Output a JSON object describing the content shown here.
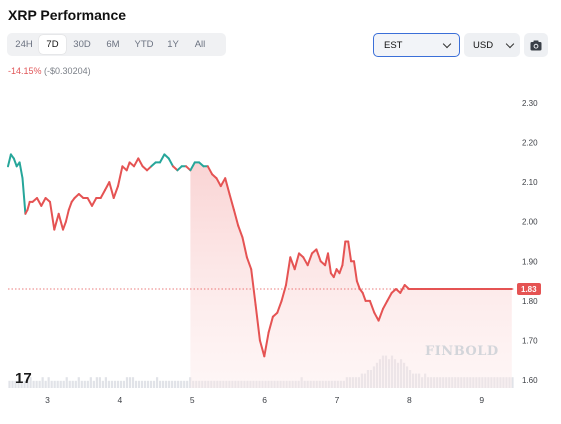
{
  "header": {
    "title": "XRP Performance"
  },
  "range_tabs": [
    "24H",
    "7D",
    "30D",
    "6M",
    "YTD",
    "1Y",
    "All"
  ],
  "active_range": "7D",
  "timezone": {
    "selected": "EST"
  },
  "currency": {
    "selected": "USD"
  },
  "icons": {
    "camera": "camera-icon",
    "chevron": "chevron-down-icon"
  },
  "performance": {
    "percent": "-14.15%",
    "absolute": "(-$0.30204)"
  },
  "current_price_label": "1.83",
  "watermark": "FINBOLD",
  "provider_logo": "17",
  "colors": {
    "up": "#26a69a",
    "down": "#e55353",
    "area_top": "#f9d5d5",
    "volume": "#e1e3e8",
    "accent": "#3b6fd8"
  },
  "chart_data": {
    "type": "line",
    "x_tick_labels": [
      "3",
      "4",
      "5",
      "6",
      "7",
      "8",
      "9"
    ],
    "x_ticks_day": [
      3,
      4,
      5,
      6,
      7,
      8,
      9
    ],
    "y_tick_labels": [
      "2.30",
      "2.20",
      "2.10",
      "2.00",
      "1.90",
      "1.80",
      "1.70",
      "1.60"
    ],
    "ylim": [
      1.6,
      2.3
    ],
    "xlim": [
      2.46,
      9.45
    ],
    "reference_price": 1.83,
    "grid": false,
    "series": [
      {
        "x": [
          2.46,
          2.5,
          2.54,
          2.58,
          2.62,
          2.66,
          2.7,
          2.73,
          2.76,
          2.8,
          2.86,
          2.92,
          2.98,
          3.04,
          3.1,
          3.16,
          3.22,
          3.26,
          3.3,
          3.34,
          3.38,
          3.44,
          3.5,
          3.56,
          3.62,
          3.68,
          3.74,
          3.8,
          3.86,
          3.92,
          3.98,
          4.04,
          4.1,
          4.14,
          4.2,
          4.26,
          4.32,
          4.38,
          4.44,
          4.5,
          4.56,
          4.62,
          4.68,
          4.74,
          4.8,
          4.86,
          4.92,
          4.98,
          5.04,
          5.1,
          5.16,
          5.22,
          5.28,
          5.34,
          5.4,
          5.46,
          5.52,
          5.58,
          5.64,
          5.7,
          5.76,
          5.82,
          5.88,
          5.94,
          6.0,
          6.06,
          6.12,
          6.18,
          6.24,
          6.3,
          6.36,
          6.42,
          6.48,
          6.54,
          6.6,
          6.66,
          6.72,
          6.78,
          6.84,
          6.88,
          6.92,
          6.96,
          7.0,
          7.04,
          7.08,
          7.12,
          7.16,
          7.2,
          7.24,
          7.28,
          7.32,
          7.36,
          7.4,
          7.46,
          7.52,
          7.58,
          7.64,
          7.7,
          7.76,
          7.82,
          7.88,
          7.94,
          8.0,
          8.06,
          8.12,
          8.18,
          8.24,
          8.3,
          8.36,
          8.42,
          8.48,
          8.54,
          8.6,
          8.66,
          8.72,
          8.78,
          8.84,
          8.9,
          8.96,
          9.02,
          9.08,
          9.14,
          9.2,
          9.26,
          9.32,
          9.38,
          9.42
        ],
        "values": [
          2.14,
          2.17,
          2.16,
          2.14,
          2.15,
          2.11,
          2.02,
          2.03,
          2.05,
          2.05,
          2.06,
          2.04,
          2.06,
          2.05,
          1.98,
          2.02,
          1.98,
          2.0,
          2.03,
          2.05,
          2.06,
          2.07,
          2.06,
          2.06,
          2.04,
          2.06,
          2.06,
          2.08,
          2.1,
          2.06,
          2.09,
          2.14,
          2.13,
          2.15,
          2.14,
          2.16,
          2.14,
          2.13,
          2.14,
          2.15,
          2.15,
          2.17,
          2.16,
          2.14,
          2.13,
          2.14,
          2.14,
          2.13,
          2.15,
          2.15,
          2.14,
          2.14,
          2.12,
          2.11,
          2.09,
          2.11,
          2.07,
          2.03,
          1.99,
          1.96,
          1.91,
          1.88,
          1.79,
          1.7,
          1.66,
          1.72,
          1.76,
          1.77,
          1.8,
          1.84,
          1.91,
          1.88,
          1.92,
          1.91,
          1.89,
          1.92,
          1.93,
          1.9,
          1.89,
          1.92,
          1.87,
          1.86,
          1.88,
          1.87,
          1.89,
          1.95,
          1.95,
          1.9,
          1.9,
          1.85,
          1.83,
          1.82,
          1.8,
          1.8,
          1.77,
          1.75,
          1.78,
          1.8,
          1.82,
          1.83,
          1.82,
          1.84,
          1.83,
          1.83,
          1.83,
          1.83,
          1.83,
          1.83,
          1.83,
          1.83,
          1.83,
          1.83,
          1.83,
          1.83,
          1.83,
          1.83,
          1.83,
          1.83,
          1.83,
          1.83,
          1.83,
          1.83,
          1.83,
          1.83,
          1.83,
          1.83,
          1.83
        ],
        "color_up_until_index": 54
      }
    ],
    "volume": [
      2,
      2,
      2,
      2,
      2,
      2,
      3,
      3,
      2,
      2,
      2,
      3,
      2,
      3,
      2,
      2,
      2,
      2,
      2,
      3,
      2,
      2,
      2,
      3,
      2,
      2,
      2,
      3,
      2,
      3,
      3,
      2,
      3,
      2,
      2,
      2,
      2,
      2,
      2,
      3,
      3,
      3,
      2,
      2,
      2,
      2,
      2,
      2,
      2,
      3,
      2,
      2,
      2,
      2,
      2,
      2,
      2,
      2,
      2,
      2,
      3,
      2,
      2,
      2,
      2,
      2,
      2,
      2,
      2,
      2,
      2,
      2,
      2,
      2,
      2,
      2,
      2,
      2,
      2,
      2,
      2,
      2,
      2,
      2,
      2,
      2,
      2,
      2,
      2,
      2,
      2,
      2,
      2,
      2,
      2,
      2,
      2,
      3,
      2,
      2,
      2,
      2,
      2,
      2,
      2,
      2,
      2,
      2,
      2,
      2,
      2,
      2,
      3,
      3,
      3,
      3,
      3,
      4,
      4,
      5,
      5,
      6,
      7,
      8,
      9,
      9,
      8,
      9,
      8,
      7,
      8,
      7,
      6,
      5,
      4,
      4,
      4,
      3,
      4,
      3,
      3,
      3,
      3,
      3,
      3,
      3,
      3,
      3,
      3,
      3,
      3,
      3,
      3,
      3,
      3,
      3,
      3,
      3,
      3,
      3,
      3,
      3,
      3,
      3,
      3,
      3,
      3,
      3
    ]
  }
}
